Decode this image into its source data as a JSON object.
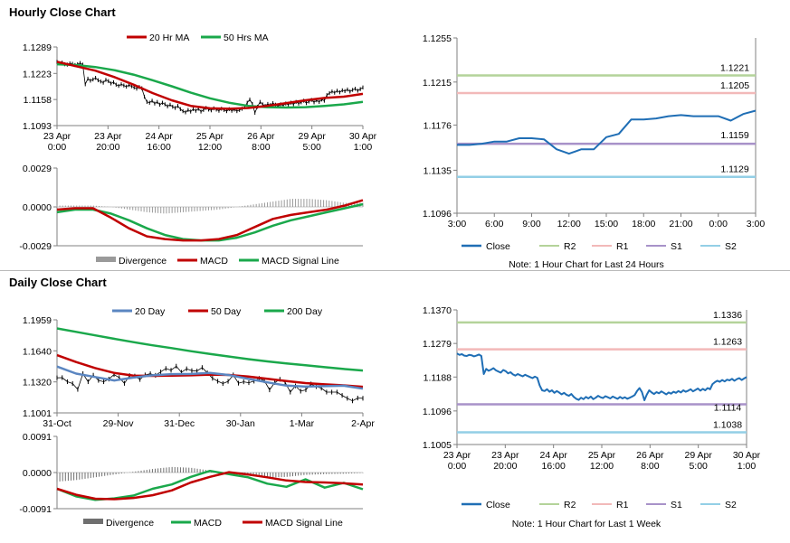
{
  "sections": {
    "hourly": {
      "title": "Hourly Close Chart"
    },
    "daily": {
      "title": "Daily Close Chart"
    }
  },
  "colors": {
    "close": "#1f6eb5",
    "ma_short": "#c00000",
    "ma_long": "#1aa84b",
    "divergence": "#9a9a9a",
    "r2": "#b4d39a",
    "r1": "#f2b9b9",
    "s1": "#a892c9",
    "s2": "#93cfe6",
    "ma20_daily": "#5b86c1",
    "axis": "#808080"
  },
  "chart_data": [
    {
      "id": "hourly-price",
      "type": "line",
      "legend": [
        "20 Hr MA",
        "50 Hrs MA"
      ],
      "legend_position": "top",
      "x_ticks": [
        [
          "23 Apr",
          "0:00"
        ],
        [
          "23 Apr",
          "20:00"
        ],
        [
          "24 Apr",
          "16:00"
        ],
        [
          "25 Apr",
          "12:00"
        ],
        [
          "26 Apr",
          "8:00"
        ],
        [
          "29 Apr",
          "5:00"
        ],
        [
          "30 Apr",
          "1:00"
        ]
      ],
      "y_ticks": [
        "1.1289",
        "1.1223",
        "1.1158",
        "1.1093"
      ],
      "ylim": [
        1.1093,
        1.1289
      ],
      "n_points": 120,
      "series": [
        {
          "name": "Close",
          "values": [
            1.1252,
            1.1248,
            1.125,
            1.1246,
            1.1245,
            1.1248,
            1.1247,
            1.1244,
            1.1246,
            1.1249,
            1.1245,
            1.1196,
            1.121,
            1.1205,
            1.1208,
            1.1212,
            1.1206,
            1.1203,
            1.12,
            1.1207,
            1.1204,
            1.1198,
            1.1201,
            1.1195,
            1.1192,
            1.1196,
            1.1193,
            1.119,
            1.1194,
            1.1191,
            1.1188,
            1.1185,
            1.1189,
            1.1186,
            1.1165,
            1.1152,
            1.115,
            1.1155,
            1.1148,
            1.1152,
            1.1145,
            1.115,
            1.1146,
            1.1141,
            1.1145,
            1.114,
            1.1137,
            1.1142,
            1.1134,
            1.1129,
            1.1126,
            1.1132,
            1.1128,
            1.1134,
            1.113,
            1.1135,
            1.1128,
            1.1132,
            1.1137,
            1.1133,
            1.1131,
            1.1136,
            1.1133,
            1.113,
            1.1135,
            1.1132,
            1.1129,
            1.1134,
            1.113,
            1.1133,
            1.1129,
            1.1132,
            1.1135,
            1.1139,
            1.115,
            1.1158,
            1.1147,
            1.1125,
            1.114,
            1.1152,
            1.1146,
            1.1142,
            1.1147,
            1.1144,
            1.1149,
            1.1145,
            1.1141,
            1.1146,
            1.1143,
            1.1148,
            1.1145,
            1.115,
            1.1146,
            1.1152,
            1.1148,
            1.1151,
            1.1155,
            1.1149,
            1.1153,
            1.1157,
            1.1151,
            1.1156,
            1.1152,
            1.1158,
            1.1155,
            1.1169,
            1.1174,
            1.1178,
            1.1175,
            1.118,
            1.1176,
            1.1181,
            1.1179,
            1.1183,
            1.1178,
            1.1182,
            1.1185,
            1.118,
            1.1184,
            1.1188
          ]
        },
        {
          "name": "20 Hr MA",
          "values": [
            1.1252,
            1.1241,
            1.123,
            1.1214,
            1.1195,
            1.1174,
            1.1156,
            1.1142,
            1.1136,
            1.1135,
            1.1137,
            1.1142,
            1.1149,
            1.1156,
            1.1162,
            1.1165,
            1.1172
          ]
        },
        {
          "name": "50 Hrs MA",
          "values": [
            1.1246,
            1.1244,
            1.1239,
            1.1231,
            1.122,
            1.1206,
            1.1191,
            1.1175,
            1.1161,
            1.115,
            1.1142,
            1.1139,
            1.1138,
            1.1139,
            1.1142,
            1.1146,
            1.1152
          ]
        }
      ]
    },
    {
      "id": "hourly-macd",
      "type": "line",
      "legend": [
        "Divergence",
        "MACD",
        "MACD Signal Line"
      ],
      "legend_position": "bottom",
      "y_ticks": [
        "0.0029",
        "0.0000",
        "-0.0029"
      ],
      "ylim": [
        -0.0029,
        0.0029
      ],
      "series": [
        {
          "name": "MACD",
          "values": [
            -0.0002,
            -0.0001,
            -0.0001,
            -0.0008,
            -0.0016,
            -0.0022,
            -0.0024,
            -0.0025,
            -0.0025,
            -0.0024,
            -0.0021,
            -0.0015,
            -0.0009,
            -0.0006,
            -0.0004,
            -0.0002,
            0.0001,
            0.0005
          ]
        },
        {
          "name": "MACD Signal Line",
          "values": [
            -0.0004,
            -0.0002,
            -0.0002,
            -0.0005,
            -0.001,
            -0.0016,
            -0.0021,
            -0.0024,
            -0.0025,
            -0.0025,
            -0.0023,
            -0.0019,
            -0.0014,
            -0.001,
            -0.0007,
            -0.0004,
            -0.0001,
            0.0002
          ]
        },
        {
          "name": "Divergence",
          "values": [
            0.0001,
            0.0001,
            0.0001,
            0.0,
            -0.0002,
            -0.0004,
            -0.0005,
            -0.0004,
            -0.0003,
            -0.0002,
            0.0,
            0.0002,
            0.0004,
            0.0006,
            0.0006,
            0.0005,
            0.0003,
            0.0003
          ]
        }
      ]
    },
    {
      "id": "hourly-24h",
      "type": "line",
      "note": "Note: 1 Hour Chart for Last 24 Hours",
      "legend": [
        "Close",
        "R2",
        "R1",
        "S1",
        "S2"
      ],
      "legend_position": "bottom",
      "x_ticks": [
        "3:00",
        "6:00",
        "9:00",
        "12:00",
        "15:00",
        "18:00",
        "21:00",
        "0:00",
        "3:00"
      ],
      "y_ticks": [
        "1.1255",
        "1.1215",
        "1.1176",
        "1.1135",
        "1.1096"
      ],
      "ylim": [
        1.1096,
        1.1255
      ],
      "levels": [
        {
          "name": "R2",
          "value": 1.1221,
          "label": "1.1221"
        },
        {
          "name": "R1",
          "value": 1.1205,
          "label": "1.1205"
        },
        {
          "name": "S1",
          "value": 1.1159,
          "label": "1.1159"
        },
        {
          "name": "S2",
          "value": 1.1129,
          "label": "1.1129"
        }
      ],
      "series": [
        {
          "name": "Close",
          "values": [
            1.1158,
            1.1158,
            1.1159,
            1.1161,
            1.1161,
            1.1164,
            1.1164,
            1.1163,
            1.1154,
            1.115,
            1.1154,
            1.1154,
            1.1165,
            1.1168,
            1.1181,
            1.1181,
            1.1182,
            1.1184,
            1.1185,
            1.1184,
            1.1184,
            1.1184,
            1.118,
            1.1186,
            1.1189
          ]
        }
      ]
    },
    {
      "id": "daily-price",
      "type": "line",
      "legend": [
        "20 Day",
        "50 Day",
        "200 Day"
      ],
      "legend_position": "top",
      "x_ticks": [
        "31-Oct",
        "29-Nov",
        "31-Dec",
        "30-Jan",
        "1-Mar",
        "2-Apr"
      ],
      "y_ticks": [
        "1.1959",
        "1.1640",
        "1.1320",
        "1.1001"
      ],
      "ylim": [
        1.1001,
        1.1959
      ],
      "series": [
        {
          "name": "Close",
          "values": [
            1.1362,
            1.1364,
            1.1322,
            1.1303,
            1.1243,
            1.1405,
            1.1322,
            1.1389,
            1.1336,
            1.1322,
            1.1349,
            1.1395,
            1.1365,
            1.1305,
            1.1385,
            1.138,
            1.1345,
            1.1392,
            1.1404,
            1.1388,
            1.1423,
            1.1458,
            1.144,
            1.1482,
            1.1419,
            1.1455,
            1.1436,
            1.1432,
            1.1468,
            1.1413,
            1.1357,
            1.1327,
            1.1303,
            1.1326,
            1.1392,
            1.1307,
            1.1321,
            1.1312,
            1.1328,
            1.1356,
            1.1331,
            1.1238,
            1.1313,
            1.1347,
            1.1315,
            1.1215,
            1.1279,
            1.1225,
            1.1238,
            1.1299,
            1.1272,
            1.1256,
            1.1215,
            1.1215,
            1.1215,
            1.1181,
            1.1151,
            1.1125,
            1.1154,
            1.1152
          ]
        },
        {
          "name": "20 Day",
          "values": [
            1.1478,
            1.1406,
            1.137,
            1.1335,
            1.1365,
            1.1388,
            1.14,
            1.1402,
            1.1413,
            1.1391,
            1.1352,
            1.1315,
            1.1282,
            1.1272,
            1.1276,
            1.1281,
            1.125
          ]
        },
        {
          "name": "50 Day",
          "values": [
            1.1595,
            1.1525,
            1.1462,
            1.1412,
            1.1385,
            1.1382,
            1.1385,
            1.1388,
            1.1395,
            1.1392,
            1.1375,
            1.1352,
            1.1328,
            1.1308,
            1.1295,
            1.1285,
            1.127
          ]
        },
        {
          "name": "200 Day",
          "values": [
            1.1871,
            1.1835,
            1.1799,
            1.1764,
            1.1729,
            1.1697,
            1.1668,
            1.1636,
            1.1608,
            1.1581,
            1.1554,
            1.1531,
            1.1511,
            1.1492,
            1.1472,
            1.1453,
            1.1437
          ]
        }
      ]
    },
    {
      "id": "daily-macd",
      "type": "line",
      "legend": [
        "Divergence",
        "MACD",
        "MACD Signal Line"
      ],
      "legend_position": "bottom",
      "y_ticks": [
        "0.0091",
        "0.0000",
        "-0.0091"
      ],
      "ylim": [
        -0.0091,
        0.0091
      ],
      "series": [
        {
          "name": "MACD",
          "values": [
            -0.0041,
            -0.006,
            -0.0069,
            -0.0065,
            -0.0058,
            -0.0041,
            -0.003,
            -0.0011,
            0.0004,
            -0.0004,
            -0.0012,
            -0.0028,
            -0.0036,
            -0.0017,
            -0.0038,
            -0.0026,
            -0.0042
          ]
        },
        {
          "name": "MACD Signal Line",
          "values": [
            -0.0041,
            -0.0056,
            -0.0066,
            -0.0067,
            -0.0064,
            -0.0057,
            -0.0045,
            -0.0025,
            -0.0011,
            0.0001,
            -0.0005,
            -0.0012,
            -0.002,
            -0.0024,
            -0.0025,
            -0.0027,
            -0.003
          ]
        },
        {
          "name": "Divergence",
          "values": [
            -0.0023,
            -0.0019,
            -0.0012,
            -0.0005,
            0.0002,
            0.0009,
            0.0014,
            0.0012,
            0.0005,
            -0.0002,
            -0.0008,
            -0.0013,
            -0.0011,
            -0.0006,
            -0.0004,
            -0.0003,
            -0.0001
          ]
        }
      ]
    },
    {
      "id": "daily-week",
      "type": "line",
      "note": "Note: 1 Hour Chart for Last 1 Week",
      "legend": [
        "Close",
        "R2",
        "R1",
        "S1",
        "S2"
      ],
      "legend_position": "bottom",
      "x_ticks": [
        [
          "23 Apr",
          "0:00"
        ],
        [
          "23 Apr",
          "20:00"
        ],
        [
          "24 Apr",
          "16:00"
        ],
        [
          "25 Apr",
          "12:00"
        ],
        [
          "26 Apr",
          "8:00"
        ],
        [
          "29 Apr",
          "5:00"
        ],
        [
          "30 Apr",
          "1:00"
        ]
      ],
      "y_ticks": [
        "1.1370",
        "1.1279",
        "1.1188",
        "1.1096",
        "1.1005"
      ],
      "ylim": [
        1.1005,
        1.137
      ],
      "levels": [
        {
          "name": "R2",
          "value": 1.1336,
          "label": "1.1336"
        },
        {
          "name": "R1",
          "value": 1.1263,
          "label": "1.1263"
        },
        {
          "name": "S1",
          "value": 1.1114,
          "label": "1.1114"
        },
        {
          "name": "S2",
          "value": 1.1038,
          "label": "1.1038"
        }
      ],
      "series": [
        {
          "name": "Close",
          "values": [
            1.1252,
            1.1248,
            1.125,
            1.1246,
            1.1245,
            1.1248,
            1.1247,
            1.1244,
            1.1246,
            1.1249,
            1.1245,
            1.1196,
            1.121,
            1.1205,
            1.1208,
            1.1212,
            1.1206,
            1.1203,
            1.12,
            1.1207,
            1.1204,
            1.1198,
            1.1201,
            1.1195,
            1.1192,
            1.1196,
            1.1193,
            1.119,
            1.1194,
            1.1191,
            1.1188,
            1.1185,
            1.1189,
            1.1186,
            1.1165,
            1.1152,
            1.115,
            1.1155,
            1.1148,
            1.1152,
            1.1145,
            1.115,
            1.1146,
            1.1141,
            1.1145,
            1.114,
            1.1137,
            1.1142,
            1.1134,
            1.1129,
            1.1126,
            1.1132,
            1.1128,
            1.1134,
            1.113,
            1.1135,
            1.1128,
            1.1132,
            1.1137,
            1.1133,
            1.1131,
            1.1136,
            1.1133,
            1.113,
            1.1135,
            1.1132,
            1.1129,
            1.1134,
            1.113,
            1.1133,
            1.1129,
            1.1132,
            1.1135,
            1.1139,
            1.115,
            1.1158,
            1.1147,
            1.1125,
            1.114,
            1.1152,
            1.1146,
            1.1142,
            1.1147,
            1.1144,
            1.1149,
            1.1145,
            1.1141,
            1.1146,
            1.1143,
            1.1148,
            1.1145,
            1.115,
            1.1146,
            1.1152,
            1.1148,
            1.1151,
            1.1155,
            1.1149,
            1.1153,
            1.1157,
            1.1151,
            1.1156,
            1.1152,
            1.1158,
            1.1155,
            1.1169,
            1.1174,
            1.1178,
            1.1175,
            1.118,
            1.1176,
            1.1181,
            1.1179,
            1.1183,
            1.1178,
            1.1182,
            1.1185,
            1.118,
            1.1184,
            1.1188
          ]
        }
      ]
    }
  ]
}
